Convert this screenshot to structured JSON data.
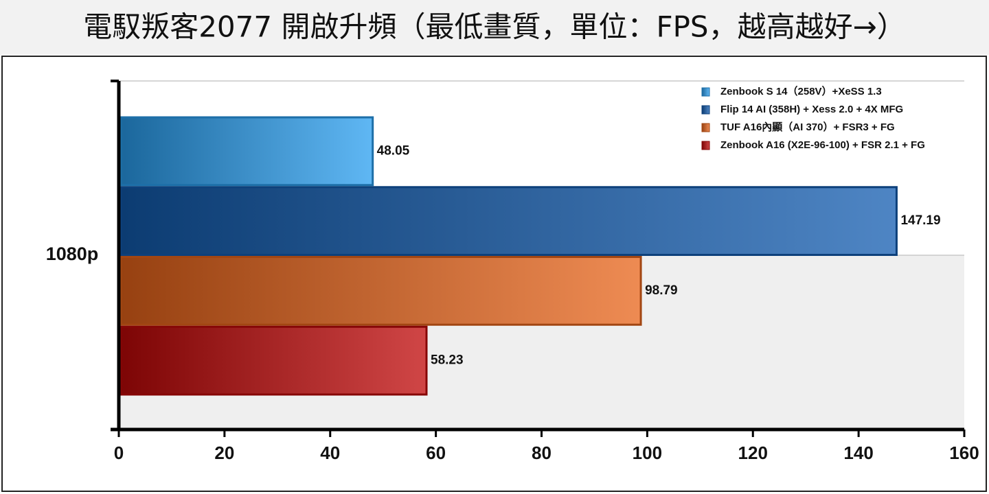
{
  "chart_data": {
    "type": "bar",
    "orientation": "horizontal",
    "title": "電馭叛客2077 開啟升頻（最低畫質，單位：FPS，越高越好→）",
    "categories": [
      "1080p"
    ],
    "series": [
      {
        "name": "Zenbook S 14（258V）+XeSS 1.3",
        "color": "#2a9ff0",
        "values": [
          48.05
        ]
      },
      {
        "name": "Flip 14 AI (358H) + Xess 2.0 + 4X MFG",
        "color": "#135cb0",
        "values": [
          147.19
        ]
      },
      {
        "name": "TUF A16內顯（AI 370）+ FSR3 + FG",
        "color": "#e8641a",
        "values": [
          98.79
        ]
      },
      {
        "name": "Zenbook A16 (X2E-96-100) + FSR 2.1 + FG",
        "color": "#c00808",
        "values": [
          58.23
        ]
      }
    ],
    "xlim": [
      0,
      160
    ],
    "xticks": [
      0,
      20,
      40,
      60,
      80,
      100,
      120,
      140,
      160
    ],
    "legend": "top-right"
  }
}
